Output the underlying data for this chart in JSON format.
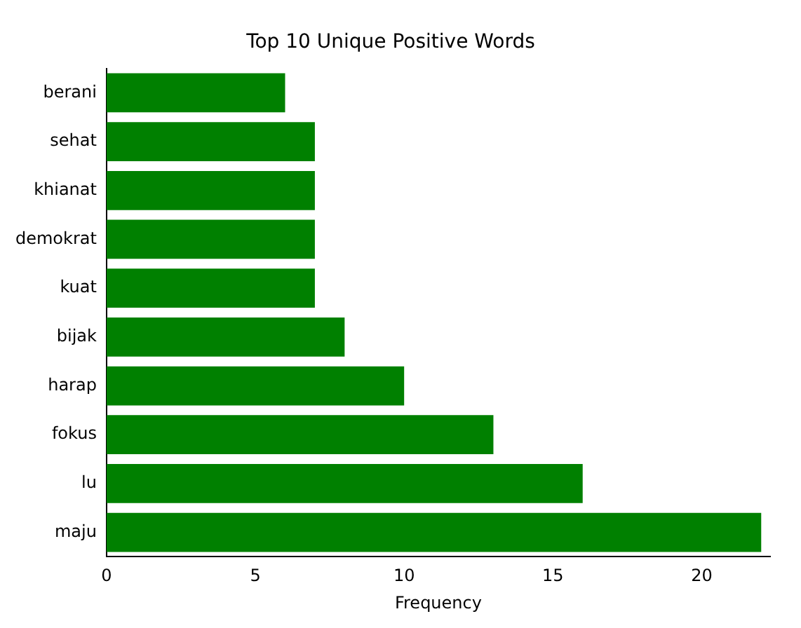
{
  "chart_data": {
    "type": "bar",
    "orientation": "horizontal",
    "title": "Top 10 Unique Positive Words",
    "xlabel": "Frequency",
    "categories": [
      "berani",
      "sehat",
      "khianat",
      "demokrat",
      "kuat",
      "bijak",
      "harap",
      "fokus",
      "lu",
      "maju"
    ],
    "values": [
      6,
      7,
      7,
      7,
      7,
      8,
      10,
      13,
      16,
      22
    ],
    "color": "#008000",
    "xlim": [
      0,
      22.3
    ],
    "xticks": [
      0,
      5,
      10,
      15,
      20
    ],
    "grid": false,
    "legend": false
  }
}
